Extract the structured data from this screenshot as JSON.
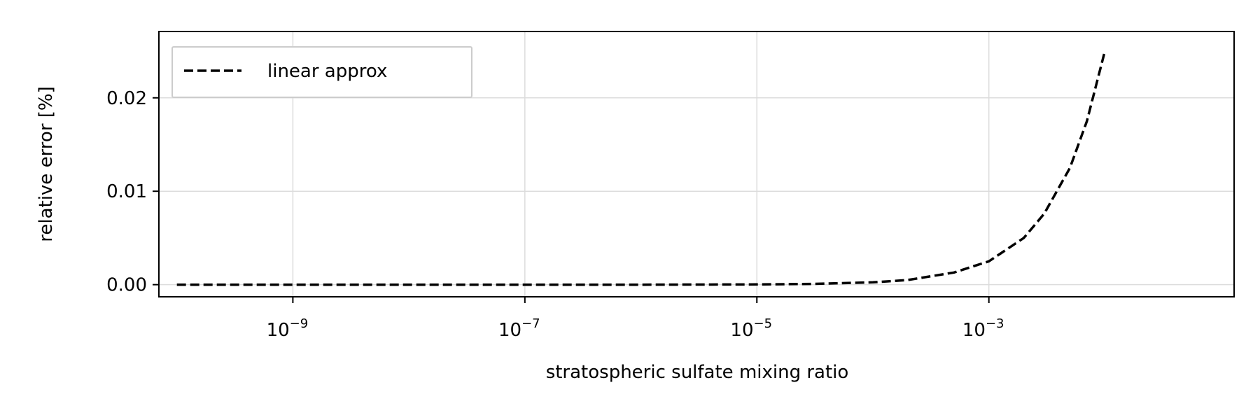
{
  "chart_data": {
    "type": "line",
    "x_scale": "log",
    "grid": true,
    "legend_placement": "top-left",
    "xlabel": "stratospheric sulfate mixing ratio",
    "ylabel": "relative error [%]",
    "xlim": [
      7e-11,
      0.13
    ],
    "ylim": [
      -0.0013,
      0.0271
    ],
    "xticks": [
      {
        "value": 1e-09,
        "base": "10",
        "exp": "−9"
      },
      {
        "value": 1e-07,
        "base": "10",
        "exp": "−7"
      },
      {
        "value": 1e-05,
        "base": "10",
        "exp": "−5"
      },
      {
        "value": 0.001,
        "base": "10",
        "exp": "−3"
      }
    ],
    "yticks": [
      {
        "value": 0.0,
        "label": "0.00"
      },
      {
        "value": 0.01,
        "label": "0.01"
      },
      {
        "value": 0.02,
        "label": "0.02"
      }
    ],
    "series": [
      {
        "name": "linear approx",
        "color": "#000000",
        "style": "dashed",
        "x": [
          1e-10,
          1e-09,
          1e-08,
          1e-07,
          1e-06,
          1e-05,
          3e-05,
          0.0001,
          0.0002,
          0.0005,
          0.001,
          0.002,
          0.003,
          0.005,
          0.007,
          0.01
        ],
        "y": [
          0.0,
          0.0,
          0.0,
          0.0,
          0.0,
          3e-05,
          8e-05,
          0.00025,
          0.0005,
          0.0013,
          0.0025,
          0.005,
          0.0076,
          0.0125,
          0.0175,
          0.025
        ]
      }
    ]
  }
}
